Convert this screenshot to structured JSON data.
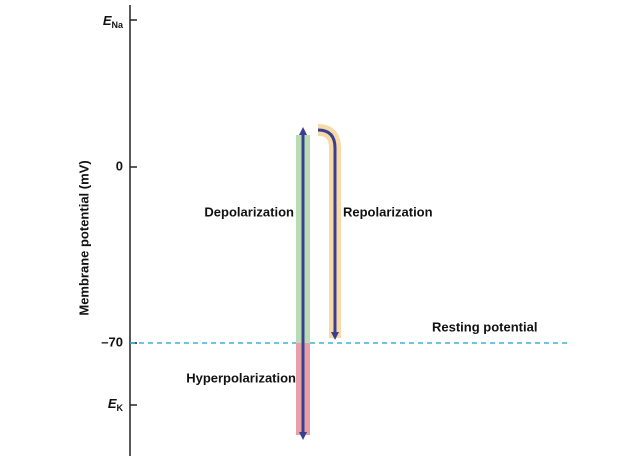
{
  "axis": {
    "label": "Membrane potential (mV)",
    "ticks": [
      {
        "main": "E",
        "sub": "Na"
      },
      {
        "main": "0"
      },
      {
        "main": "–70"
      },
      {
        "main": "E",
        "sub": "K"
      }
    ]
  },
  "labels": {
    "depolarization": "Depolarization",
    "repolarization": "Repolarization",
    "resting": "Resting potential",
    "hyperpolarization": "Hyperpolarization"
  }
}
